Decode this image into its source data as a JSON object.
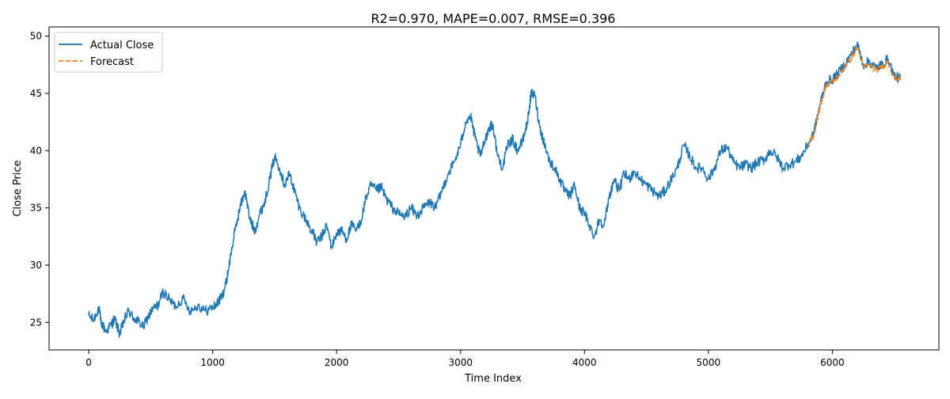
{
  "chart_data": {
    "type": "line",
    "title": "R2=0.970, MAPE=0.007, RMSE=0.396",
    "xlabel": "Time Index",
    "ylabel": "Close Price",
    "xlim": [
      -320,
      6860
    ],
    "ylim": [
      22.6,
      50.8
    ],
    "x_ticks": [
      0,
      1000,
      2000,
      3000,
      4000,
      5000,
      6000
    ],
    "y_ticks": [
      25,
      30,
      35,
      40,
      45,
      50
    ],
    "x_tick_labels": [
      "0",
      "1000",
      "2000",
      "3000",
      "4000",
      "5000",
      "6000"
    ],
    "y_tick_labels": [
      "25",
      "30",
      "35",
      "40",
      "45",
      "50"
    ],
    "grid": false,
    "legend_position": "top-left",
    "colors": {
      "actual": "#1f77b4",
      "forecast": "#ff7f0e"
    },
    "series": [
      {
        "name": "Actual Close",
        "style": "solid",
        "x": [
          0,
          40,
          80,
          100,
          140,
          180,
          210,
          250,
          280,
          320,
          360,
          400,
          440,
          480,
          520,
          560,
          600,
          650,
          700,
          760,
          820,
          880,
          940,
          1000,
          1040,
          1080,
          1110,
          1140,
          1180,
          1220,
          1260,
          1300,
          1340,
          1380,
          1420,
          1460,
          1500,
          1540,
          1580,
          1620,
          1660,
          1700,
          1750,
          1800,
          1840,
          1880,
          1920,
          1960,
          2000,
          2040,
          2080,
          2120,
          2160,
          2200,
          2240,
          2280,
          2320,
          2360,
          2400,
          2450,
          2500,
          2550,
          2600,
          2650,
          2700,
          2750,
          2800,
          2850,
          2900,
          2950,
          3000,
          3040,
          3080,
          3120,
          3160,
          3200,
          3230,
          3260,
          3300,
          3340,
          3380,
          3420,
          3460,
          3500,
          3540,
          3570,
          3600,
          3640,
          3680,
          3720,
          3760,
          3800,
          3840,
          3880,
          3920,
          3960,
          4000,
          4040,
          4080,
          4120,
          4160,
          4200,
          4240,
          4280,
          4320,
          4360,
          4400,
          4450,
          4500,
          4550,
          4600,
          4650,
          4700,
          4750,
          4800,
          4850,
          4900,
          4950,
          5000,
          5050,
          5100,
          5150,
          5200,
          5250,
          5300,
          5350,
          5400,
          5450,
          5500,
          5550,
          5600,
          5650,
          5700,
          5750,
          5800,
          5850,
          5900,
          5950,
          6000,
          6050,
          6100,
          6150,
          6200,
          6250,
          6300,
          6350,
          6400,
          6450,
          6500,
          6550
        ],
        "y": [
          25.6,
          25.2,
          26.3,
          25.0,
          24.2,
          24.8,
          25.3,
          24.0,
          25.0,
          26.0,
          25.4,
          25.1,
          24.6,
          25.5,
          26.2,
          26.5,
          27.7,
          27.0,
          26.4,
          27.1,
          26.0,
          26.5,
          26.0,
          26.3,
          26.7,
          27.4,
          28.5,
          30.5,
          33.0,
          35.0,
          36.5,
          34.0,
          33.0,
          34.5,
          35.5,
          37.5,
          39.5,
          38.5,
          37.0,
          38.0,
          36.5,
          35.0,
          34.0,
          33.0,
          32.0,
          32.5,
          33.5,
          31.5,
          32.8,
          33.0,
          32.3,
          33.5,
          33.0,
          34.0,
          36.0,
          37.0,
          36.5,
          36.8,
          35.8,
          35.0,
          34.5,
          34.2,
          35.0,
          34.3,
          35.0,
          35.5,
          35.0,
          36.5,
          38.0,
          39.0,
          40.5,
          42.5,
          43.0,
          41.0,
          39.5,
          41.0,
          42.0,
          42.3,
          39.5,
          38.5,
          40.5,
          41.0,
          40.0,
          40.8,
          42.5,
          45.0,
          44.8,
          42.0,
          40.5,
          39.0,
          38.5,
          37.5,
          36.5,
          36.0,
          37.0,
          35.0,
          34.5,
          33.5,
          32.5,
          34.0,
          33.5,
          36.0,
          37.5,
          36.5,
          38.0,
          37.5,
          38.2,
          37.5,
          37.0,
          36.5,
          36.0,
          36.5,
          37.5,
          38.5,
          40.5,
          39.5,
          38.5,
          38.5,
          37.5,
          38.5,
          40.0,
          40.3,
          39.0,
          38.5,
          38.8,
          38.5,
          39.0,
          39.2,
          40.0,
          39.5,
          38.5,
          38.8,
          39.0,
          39.5,
          40.5,
          41.5,
          44.0,
          46.0,
          46.2,
          46.8,
          47.5,
          48.3,
          49.3,
          47.5,
          47.8,
          47.2,
          47.5,
          48.0,
          46.5,
          46.3
        ]
      },
      {
        "name": "Forecast",
        "style": "dashed",
        "x": [
          5800,
          5850,
          5900,
          5950,
          6000,
          6050,
          6100,
          6150,
          6200,
          6250,
          6300,
          6350,
          6400,
          6450,
          6500,
          6550
        ],
        "y": [
          40.4,
          41.4,
          43.8,
          45.7,
          46.0,
          46.5,
          47.4,
          48.0,
          49.0,
          47.3,
          47.5,
          47.0,
          47.3,
          47.8,
          46.3,
          46.4
        ]
      }
    ]
  }
}
